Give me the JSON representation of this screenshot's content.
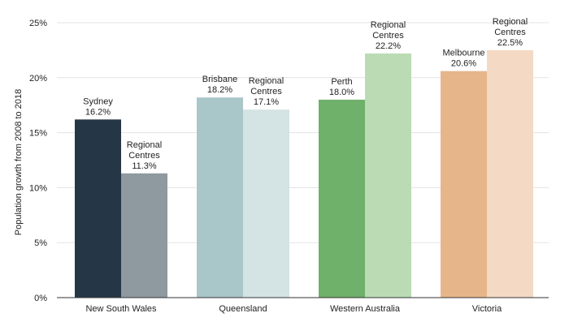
{
  "chart_data": {
    "type": "bar",
    "ylabel": "Population growth from 2008 to 2018",
    "ylim": [
      0,
      25
    ],
    "yticks": [
      0,
      5,
      10,
      15,
      20,
      25
    ],
    "ytick_labels": [
      "0%",
      "5%",
      "10%",
      "15%",
      "20%",
      "25%"
    ],
    "grid": true,
    "legend": "none",
    "groups": [
      {
        "category": "New South Wales",
        "bars": [
          {
            "label": [
              "Sydney",
              "16.2%"
            ],
            "value": 16.2,
            "color": "#253746"
          },
          {
            "label": [
              "Regional",
              "Centres",
              "11.3%"
            ],
            "value": 11.3,
            "color": "#8f99a0"
          }
        ]
      },
      {
        "category": "Queensland",
        "bars": [
          {
            "label": [
              "Brisbane",
              "18.2%"
            ],
            "value": 18.2,
            "color": "#a9c6c9"
          },
          {
            "label": [
              "Regional",
              "Centres",
              "17.1%"
            ],
            "value": 17.1,
            "color": "#d4e3e3"
          }
        ]
      },
      {
        "category": "Western Australia",
        "bars": [
          {
            "label": [
              "Perth",
              "18.0%"
            ],
            "value": 18.0,
            "color": "#6fb06a"
          },
          {
            "label": [
              "Regional",
              "Centres",
              "22.2%"
            ],
            "value": 22.2,
            "color": "#badbb4"
          }
        ]
      },
      {
        "category": "Victoria",
        "bars": [
          {
            "label": [
              "Melbourne",
              "20.6%"
            ],
            "value": 20.6,
            "color": "#e6b68a"
          },
          {
            "label": [
              "Regional",
              "Centres",
              "22.5%"
            ],
            "value": 22.5,
            "color": "#f4d9c4"
          }
        ]
      }
    ]
  }
}
